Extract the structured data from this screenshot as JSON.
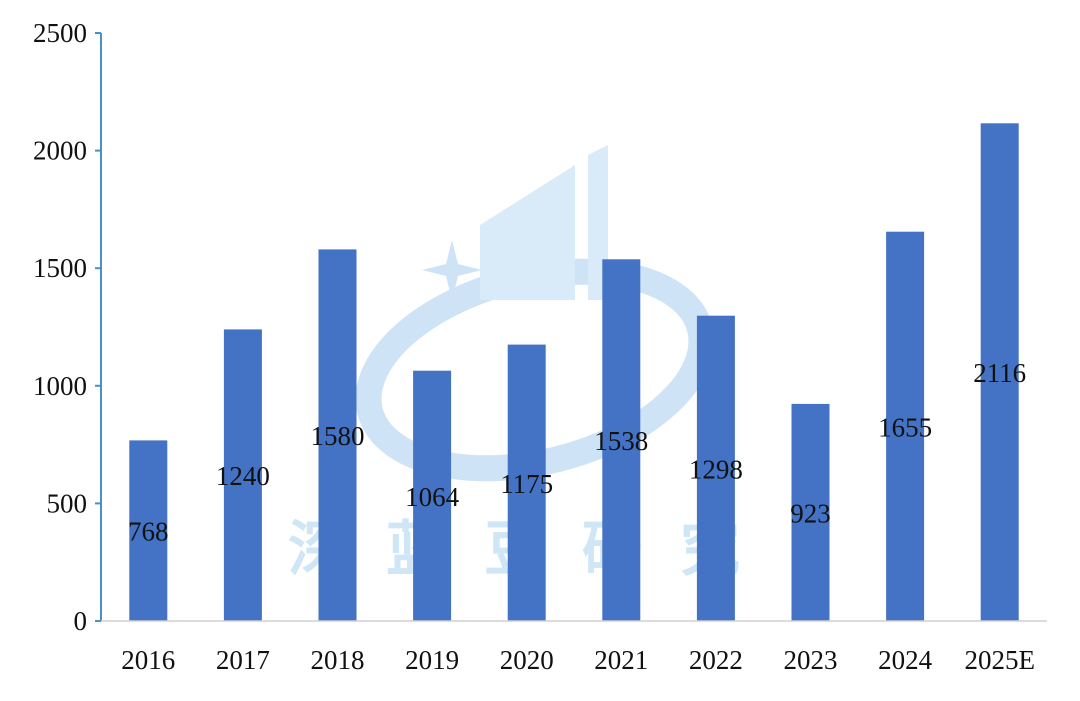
{
  "chart_data": {
    "type": "bar",
    "categories": [
      "2016",
      "2017",
      "2018",
      "2019",
      "2020",
      "2021",
      "2022",
      "2023",
      "2024",
      "2025E"
    ],
    "values": [
      768,
      1240,
      1580,
      1064,
      1175,
      1538,
      1298,
      923,
      1655,
      2116
    ],
    "title": "",
    "xlabel": "",
    "ylabel": "",
    "ylim": [
      0,
      2500
    ],
    "yticks": [
      0,
      500,
      1000,
      1500,
      2000,
      2500
    ],
    "grid": false,
    "legend": "none",
    "bar_color": "#4472c4",
    "axis_color": "#4a90c8"
  },
  "watermark": {
    "text": "深蓝豆研究",
    "color": "#cfe6f6"
  }
}
